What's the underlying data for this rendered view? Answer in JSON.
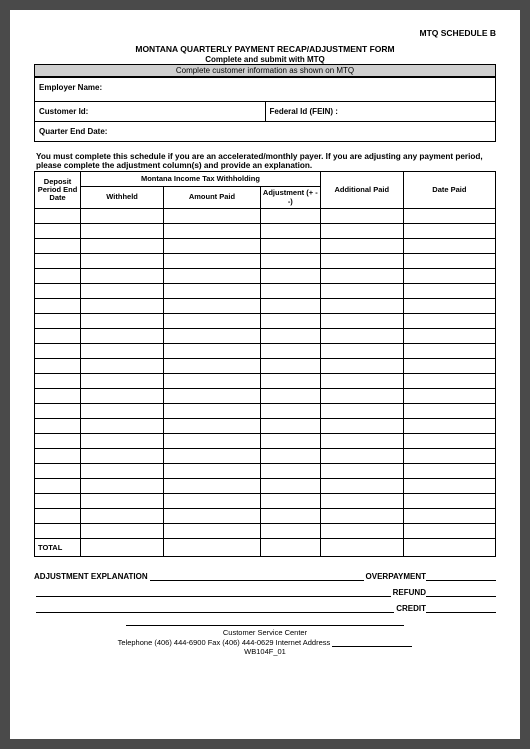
{
  "header": {
    "schedule": "MTQ SCHEDULE B",
    "title": "MONTANA QUARTERLY PAYMENT RECAP/ADJUSTMENT FORM",
    "subtitle": "Complete and submit with MTQ",
    "graybar": "Complete customer information as shown on MTQ"
  },
  "info": {
    "employer_label": "Employer Name:",
    "customer_label": "Customer Id:",
    "federal_label": "Federal Id (FEIN) :",
    "quarter_label": "Quarter End Date:"
  },
  "instruction": "You must complete this schedule if you are an accelerated/monthly  payer.  If you are adjusting any payment period, please complete the adjustment column(s) and provide an explanation.",
  "table": {
    "col_deposit": "Deposit Period End Date",
    "col_group": "Montana Income Tax Withholding",
    "col_withheld": "Withheld",
    "col_amount": "Amount Paid",
    "col_adj": "Adjustment (+  --)",
    "col_additional": "Additional Paid",
    "col_datepaid": "Date Paid",
    "blank_rows": 22,
    "total_label": "TOTAL"
  },
  "adjustment": {
    "explanation_label": "ADJUSTMENT EXPLANATION",
    "overpayment_label": "OVERPAYMENT",
    "refund_label": "REFUND",
    "credit_label": "CREDIT"
  },
  "footer": {
    "line1": "Customer Service Center",
    "line2_prefix": "Telephone (406) 444-6900 Fax (406) 444-0629 ",
    "line2_mid": "Internet Address",
    "code": "WB104F_01"
  },
  "style": {
    "page_bg": "#ffffff",
    "graybar_bg": "#cfcfcf",
    "border_color": "#000000"
  }
}
